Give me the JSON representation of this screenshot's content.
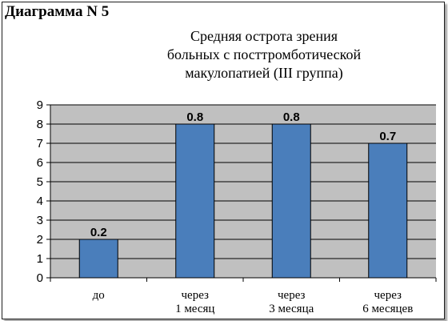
{
  "diagram_label": "Диаграмма N 5",
  "chart_data": {
    "type": "bar",
    "title_lines": [
      "Средняя острота зрения",
      "больных с посттромботической",
      "макулопатией (III группа)"
    ],
    "xlabel": "",
    "ylabel": "",
    "ylim": [
      0,
      9
    ],
    "yticks": [
      0,
      1,
      2,
      3,
      4,
      5,
      6,
      7,
      8,
      9
    ],
    "grid": true,
    "legend": "none",
    "categories": [
      [
        "до"
      ],
      [
        "через",
        "1 месяц"
      ],
      [
        "через",
        "3 месяца"
      ],
      [
        "через",
        "6 месяцев"
      ]
    ],
    "values": [
      2,
      8,
      8,
      7
    ],
    "data_labels": [
      "0.2",
      "0.8",
      "0.8",
      "0.7"
    ],
    "colors": {
      "bar": "#4a7ebb",
      "bar_edge": "#000000",
      "plot_bg": "#c0c0c0",
      "grid": "#000000"
    }
  }
}
